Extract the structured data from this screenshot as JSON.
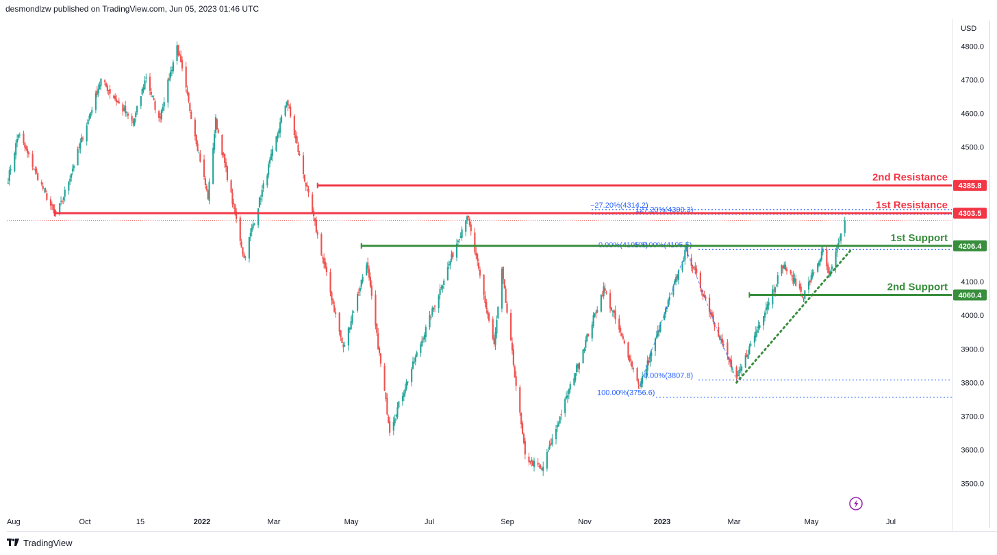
{
  "header": {
    "publisher": "desmondlzw published on TradingView.com, Jun 05, 2023 01:46 UTC"
  },
  "footer": {
    "brand": "TradingView",
    "logo_icon": "tradingview-logo-icon"
  },
  "colors": {
    "up": "#26a69a",
    "down": "#ef5350",
    "resistance": "#f23645",
    "support": "#388e3c",
    "fib": "#2962ff",
    "flash": "#9c27b0"
  },
  "chart_data": {
    "type": "candlestick",
    "title": "",
    "xlabel": "",
    "ylabel": "USD",
    "ylim": [
      3420,
      4880
    ],
    "x_ticks": [
      "Aug",
      "Oct",
      "15",
      "2022",
      "Mar",
      "May",
      "Jul",
      "Sep",
      "Nov",
      "2023",
      "Mar",
      "May",
      "Jul"
    ],
    "y_ticks": [
      4800.0,
      4700.0,
      4600.0,
      4500.0,
      4400.0,
      4300.0,
      4200.0,
      4100.0,
      4000.0,
      3900.0,
      3800.0,
      3700.0,
      3600.0,
      3500.0
    ],
    "price_path": [
      [
        "2021-08-25",
        4405
      ],
      [
        "2021-09-02",
        4540
      ],
      [
        "2021-09-30",
        4300
      ],
      [
        "2021-10-05",
        4330
      ],
      [
        "2021-11-05",
        4700
      ],
      [
        "2021-11-30",
        4570
      ],
      [
        "2021-12-10",
        4710
      ],
      [
        "2021-12-20",
        4580
      ],
      [
        "2022-01-03",
        4800
      ],
      [
        "2022-01-27",
        4350
      ],
      [
        "2022-02-02",
        4580
      ],
      [
        "2022-02-24",
        4170
      ],
      [
        "2022-03-29",
        4640
      ],
      [
        "2022-05-12",
        3900
      ],
      [
        "2022-05-30",
        4160
      ],
      [
        "2022-06-17",
        3660
      ],
      [
        "2022-08-16",
        4300
      ],
      [
        "2022-09-06",
        3910
      ],
      [
        "2022-09-12",
        4130
      ],
      [
        "2022-09-30",
        3580
      ],
      [
        "2022-10-13",
        3540
      ],
      [
        "2022-11-30",
        4080
      ],
      [
        "2022-12-28",
        3790
      ],
      [
        "2023-02-02",
        4195
      ],
      [
        "2023-03-13",
        3808
      ],
      [
        "2023-04-18",
        4150
      ],
      [
        "2023-05-04",
        4060
      ],
      [
        "2023-05-19",
        4190
      ],
      [
        "2023-05-24",
        4110
      ],
      [
        "2023-06-05",
        4282
      ]
    ],
    "levels": [
      {
        "name": "2nd Resistance",
        "value": 4385.8,
        "label": "4385.8",
        "kind": "resistance",
        "from": "2022-04-22"
      },
      {
        "name": "1st Resistance",
        "value": 4303.5,
        "label": "4303.5",
        "kind": "resistance",
        "from": "2021-09-30"
      },
      {
        "name": "1st Support",
        "value": 4206.4,
        "label": "4206.4",
        "kind": "support",
        "from": "2022-05-26"
      },
      {
        "name": "2nd Support",
        "value": 4060.4,
        "label": "4060.4",
        "kind": "support",
        "from": "2023-03-23"
      }
    ],
    "fib_levels": [
      {
        "label": "−27.20%(4314.2)",
        "value": 4314.2
      },
      {
        "label": "127.20%(4300.3)",
        "value": 4300.3
      },
      {
        "label": "0.00%(4195.6)",
        "value": 4195.6
      },
      {
        "label": "100.00%(4195.6)",
        "value": 4195.6
      },
      {
        "label": "0.00%(3807.8)",
        "value": 3807.8
      },
      {
        "label": "100.00%(3756.6)",
        "value": 3756.6
      }
    ],
    "trendline": {
      "from": [
        "2023-03-13",
        3800
      ],
      "to": [
        "2023-06-10",
        4195
      ]
    },
    "current_price": 4282,
    "grid": false,
    "legend": "none"
  }
}
